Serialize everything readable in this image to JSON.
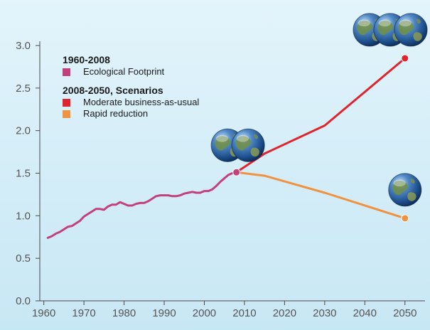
{
  "colors": {
    "background_top": "#e3f4fb",
    "background_bottom": "#c8e7f4",
    "axis": "#4a4a4a",
    "tick_label": "#555555"
  },
  "icons": {
    "globe": "earth-globe-icon"
  },
  "chart_data": {
    "type": "line",
    "title": "",
    "xlabel": "",
    "ylabel": "",
    "xlim": [
      1959,
      2055
    ],
    "ylim": [
      0,
      3.0
    ],
    "x_ticks": [
      1960,
      1970,
      1980,
      1990,
      2000,
      2010,
      2020,
      2030,
      2040,
      2050
    ],
    "y_ticks": [
      0.0,
      0.5,
      1.0,
      1.5,
      2.0,
      2.5,
      3.0
    ],
    "x_tick_labels": [
      "1960",
      "1970",
      "1980",
      "1990",
      "2000",
      "2010",
      "2020",
      "2030",
      "2040",
      "2050"
    ],
    "y_tick_labels": [
      "0.0",
      "0.5",
      "1.0",
      "1.5",
      "2.0",
      "2.5",
      "3.0"
    ],
    "grid": false,
    "legend_placement": "top-left",
    "legend_groups": [
      {
        "title": "1960-2008",
        "entries": [
          {
            "label": "Ecological Footprint",
            "color": "#c2417c"
          }
        ]
      },
      {
        "title": "2008-2050, Scenarios",
        "entries": [
          {
            "label": "Moderate business-as-usual",
            "color": "#e0242d"
          },
          {
            "label": "Rapid reduction",
            "color": "#f0923f"
          }
        ]
      }
    ],
    "series": [
      {
        "name": "Ecological Footprint",
        "color": "#c2417c",
        "x": [
          1961,
          1962,
          1963,
          1964,
          1965,
          1966,
          1967,
          1968,
          1969,
          1970,
          1971,
          1972,
          1973,
          1974,
          1975,
          1976,
          1977,
          1978,
          1979,
          1980,
          1981,
          1982,
          1983,
          1984,
          1985,
          1986,
          1987,
          1988,
          1989,
          1990,
          1991,
          1992,
          1993,
          1994,
          1995,
          1996,
          1997,
          1998,
          1999,
          2000,
          2001,
          2002,
          2003,
          2004,
          2005,
          2006,
          2007,
          2008
        ],
        "y": [
          0.74,
          0.76,
          0.79,
          0.81,
          0.84,
          0.87,
          0.88,
          0.91,
          0.94,
          0.99,
          1.02,
          1.05,
          1.08,
          1.08,
          1.07,
          1.11,
          1.13,
          1.13,
          1.16,
          1.14,
          1.12,
          1.12,
          1.14,
          1.15,
          1.15,
          1.17,
          1.2,
          1.23,
          1.24,
          1.24,
          1.24,
          1.23,
          1.23,
          1.24,
          1.26,
          1.27,
          1.28,
          1.27,
          1.27,
          1.29,
          1.29,
          1.31,
          1.35,
          1.4,
          1.44,
          1.48,
          1.5,
          1.51
        ],
        "end_marker": true
      },
      {
        "name": "Moderate business-as-usual",
        "color": "#e0242d",
        "x": [
          2008,
          2015,
          2030,
          2050
        ],
        "y": [
          1.51,
          1.73,
          2.06,
          2.85
        ],
        "end_marker": true
      },
      {
        "name": "Rapid reduction",
        "color": "#f0923f",
        "x": [
          2008,
          2015,
          2030,
          2050
        ],
        "y": [
          1.51,
          1.47,
          1.27,
          0.97
        ],
        "end_marker": true
      }
    ],
    "annotations": [
      {
        "type": "globe-icons",
        "count": 2,
        "at_x": 2008,
        "at_y": 1.51
      },
      {
        "type": "globe-icons",
        "count": 3,
        "at_x": 2050,
        "at_y": 2.85
      },
      {
        "type": "globe-icons",
        "count": 1,
        "at_x": 2050,
        "at_y": 0.97
      }
    ]
  }
}
